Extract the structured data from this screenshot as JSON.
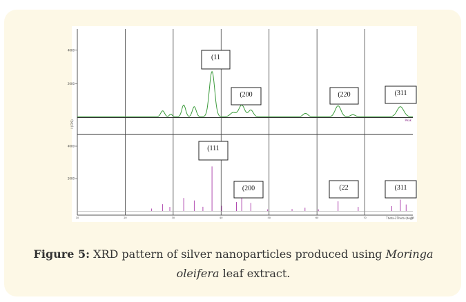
{
  "figure": {
    "panels": [
      {
        "yticks": [
          2000,
          4000
        ],
        "ylabel": "I (CPS)",
        "legend": "Peak",
        "annotations": [
          "(11",
          "(200",
          "(220",
          "(311"
        ]
      },
      {
        "yticks": [
          2000,
          4000
        ],
        "annotations": [
          "(111",
          "(200",
          "(22",
          "(311"
        ]
      }
    ],
    "xticks": [
      10,
      20,
      30,
      40,
      50,
      60,
      70,
      80
    ],
    "xlabel": "Theta-2Theta (deg)"
  },
  "caption": {
    "label": "Figure 5:",
    "text_before": "XRD pattern of silver nanoparticles produced using ",
    "species": "Moringa oleifera",
    "text_after": " leaf extract."
  }
}
